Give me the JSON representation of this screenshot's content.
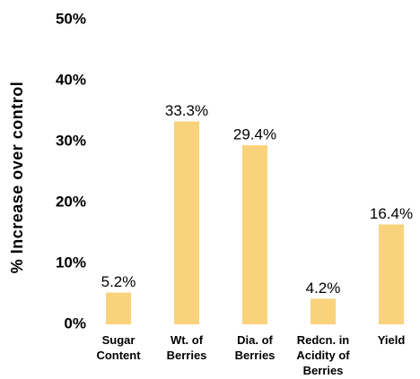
{
  "chart_data": {
    "type": "bar",
    "y_label": "% Increase over control",
    "categories": [
      [
        "Sugar",
        "Content"
      ],
      [
        "Wt. of",
        "Berries"
      ],
      [
        "Dia. of",
        "Berries"
      ],
      [
        "Redcn. in",
        "Acidity of",
        "Berries"
      ],
      [
        "Yield"
      ]
    ],
    "values": [
      5.2,
      33.3,
      29.4,
      4.2,
      16.4
    ],
    "value_labels": [
      "5.2%",
      "33.3%",
      "29.4%",
      "4.2%",
      "16.4%"
    ],
    "color": "#f9d27c",
    "ylim": [
      0,
      50
    ],
    "yticks": [
      {
        "value": 0,
        "label": "0%"
      },
      {
        "value": 10,
        "label": "10%"
      },
      {
        "value": 20,
        "label": "20%"
      },
      {
        "value": 30,
        "label": "30%"
      },
      {
        "value": 40,
        "label": "40%"
      },
      {
        "value": 50,
        "label": "50%"
      }
    ],
    "grid": false
  }
}
